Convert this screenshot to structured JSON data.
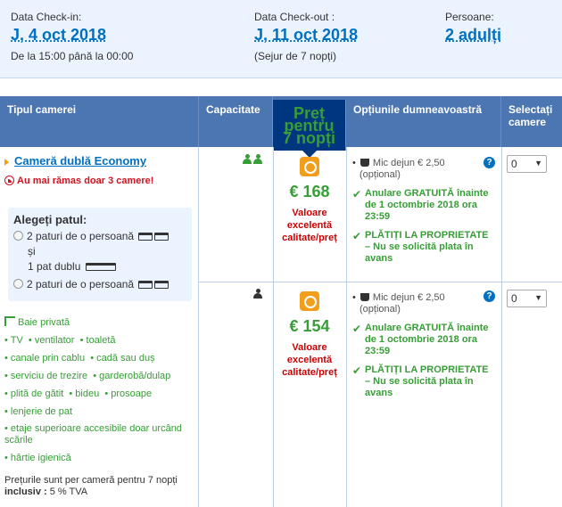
{
  "summary": {
    "checkin": {
      "label": "Data Check-in:",
      "date": "J, 4 oct 2018",
      "hours": "De la 15:00 până la 00:00"
    },
    "checkout": {
      "label": "Data Check-out :",
      "date": "J, 11 oct 2018",
      "stay": "(Sejur de 7 nopți)"
    },
    "guests": {
      "label": "Persoane:",
      "value": "2 adulți"
    }
  },
  "table_header": {
    "room_type": "Tipul camerei",
    "capacity": "Capacitate",
    "price": "Preț pentru 7 nopți",
    "options": "Opțiunile dumneavoastră",
    "select": "Selectați camere"
  },
  "room": {
    "name": "Cameră dublă Economy",
    "scarcity": "Au mai rămas doar 3 camere!",
    "bed_title": "Alegeți patul:",
    "bed_option_1a": "2 paturi de o persoană",
    "bed_and": "și",
    "bed_option_1b": "1 pat dublu",
    "bed_option_2": "2 paturi de o persoană",
    "facilities": {
      "bath": "Baie privată",
      "tv": "TV",
      "fan": "ventilator",
      "toilet": "toaletă",
      "cable": "canale prin cablu",
      "bath_shower": "cadă sau duș",
      "wakeup": "serviciu de trezire",
      "wardrobe": "garderobă/dulap",
      "stove": "plită de gătit",
      "bidet": "bideu",
      "towels": "prosoape",
      "linens": "lenjerie de pat",
      "upper_floors": "etaje superioare accesibile doar urcând scările",
      "toilet_paper": "hârtie igienică"
    },
    "price_note": "Prețurile sunt per cameră pentru 7 nopți",
    "price_note_inclusive": "inclusiv :",
    "price_note_vat": "5 % TVA"
  },
  "offers": [
    {
      "price": "€ 168",
      "value_label": "Valoare excelentă calitate/preț",
      "breakfast": "Mic dejun € 2,50",
      "breakfast_note": "(opțional)",
      "cancel": "Anulare GRATUITĂ înainte de 1 octombrie 2018 ora 23:59",
      "pay": "PLĂTIȚI LA PROPRIETATE – Nu se solicită plata în avans",
      "selected": "0"
    },
    {
      "price": "€ 154",
      "value_label": "Valoare excelentă calitate/preț",
      "breakfast": "Mic dejun € 2,50",
      "breakfast_note": "(opțional)",
      "cancel": "Anulare GRATUITĂ înainte de 1 octombrie 2018 ora 23:59",
      "pay": "PLĂTIȚI LA PROPRIETATE – Nu se solicită plata în avans",
      "selected": "0"
    }
  ],
  "colors": {
    "accent": "#0071c2",
    "header": "#4c76b2",
    "price_header": "#003580",
    "green": "#379d37",
    "red": "#d4111e",
    "badge": "#f19e1c"
  }
}
